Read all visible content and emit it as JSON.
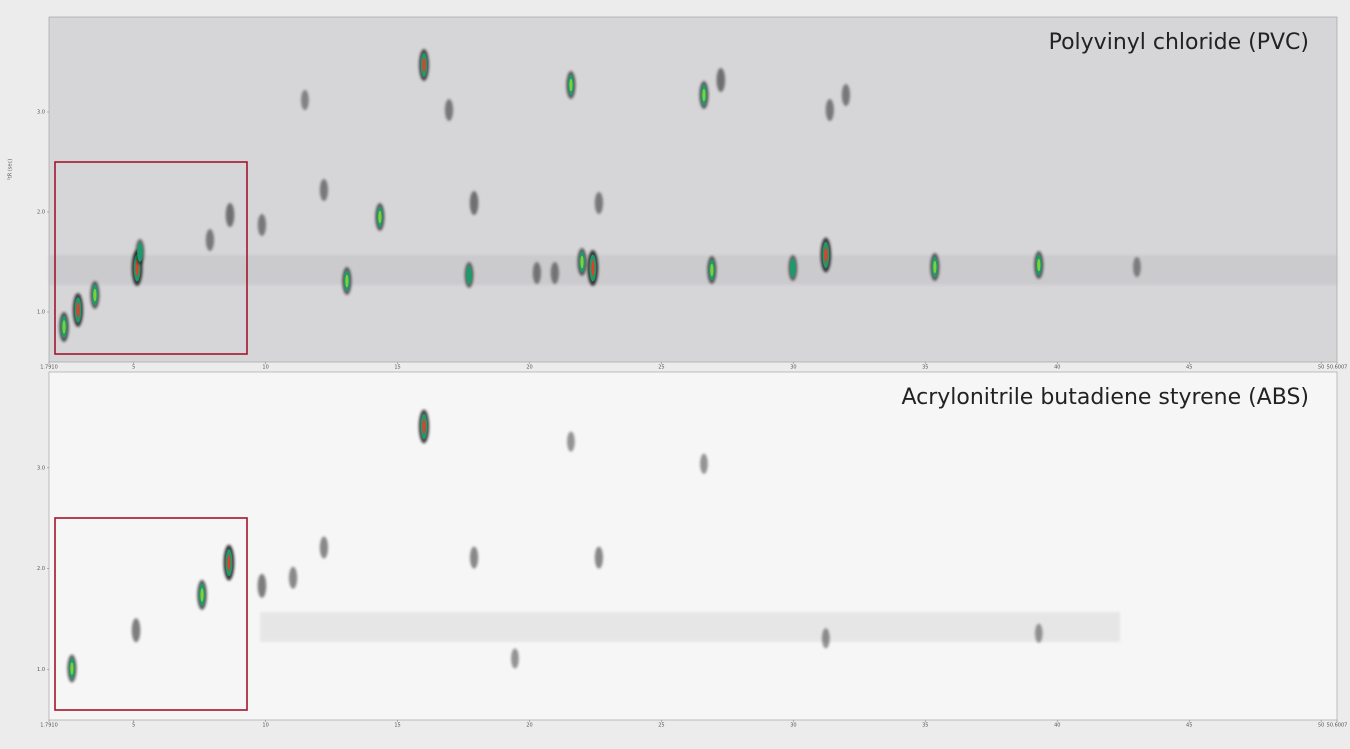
{
  "chart_data": [
    {
      "type": "scatter",
      "title": "Polyvinyl chloride (PVC)",
      "y_label": "²tR (sec)",
      "xlim": [
        1.791,
        50.6007
      ],
      "ylim": [
        0.5,
        3.95
      ],
      "xticks": [
        {
          "value": 1.791,
          "label": "1.7910"
        },
        5,
        10,
        15,
        20,
        25,
        30,
        35,
        40,
        45,
        50,
        {
          "value": 50.6007,
          "label": "50.6007"
        }
      ],
      "yticks": [
        {
          "value": 1,
          "label": "1.0"
        },
        {
          "value": 2,
          "label": "2.0"
        },
        {
          "value": 3,
          "label": "3.0"
        }
      ],
      "x": [
        2.36,
        2.89,
        3.53,
        5.13,
        5.24,
        7.89,
        8.65,
        9.86,
        11.49,
        12.21,
        13.08,
        14.33,
        16.0,
        16.95,
        17.71,
        17.9,
        20.28,
        20.96,
        21.57,
        21.99,
        22.4,
        22.63,
        26.61,
        26.91,
        27.25,
        29.98,
        31.23,
        31.38,
        31.99,
        35.36,
        39.3,
        43.02
      ],
      "y": [
        0.85,
        1.02,
        1.17,
        1.44,
        1.6,
        1.72,
        1.97,
        1.87,
        3.12,
        2.22,
        1.31,
        1.95,
        3.47,
        3.02,
        1.37,
        2.09,
        1.39,
        1.39,
        3.27,
        1.5,
        1.44,
        2.09,
        3.17,
        1.42,
        3.32,
        1.44,
        1.57,
        3.02,
        3.17,
        1.45,
        1.47,
        1.45
      ],
      "intensity": [
        0.7,
        0.9,
        0.6,
        1.0,
        0.5,
        0.3,
        0.4,
        0.3,
        0.2,
        0.3,
        0.6,
        0.6,
        0.8,
        0.3,
        0.5,
        0.4,
        0.3,
        0.3,
        0.6,
        0.6,
        1.0,
        0.3,
        0.6,
        0.6,
        0.4,
        0.5,
        0.95,
        0.3,
        0.3,
        0.6,
        0.6,
        0.2
      ]
    },
    {
      "type": "scatter",
      "title": "Acrylonitrile butadiene styrene (ABS)",
      "xlim": [
        1.791,
        50.6007
      ],
      "ylim": [
        0.5,
        3.95
      ],
      "xticks": [
        {
          "value": 1.791,
          "label": "1.7910"
        },
        5,
        10,
        15,
        20,
        25,
        30,
        35,
        40,
        45,
        50,
        {
          "value": 50.6007,
          "label": "50.6007"
        }
      ],
      "yticks": [
        {
          "value": 1,
          "label": "1.0"
        },
        {
          "value": 2,
          "label": "2.0"
        },
        {
          "value": 3,
          "label": "3.0"
        }
      ],
      "x": [
        2.66,
        5.09,
        7.59,
        8.61,
        9.86,
        11.04,
        12.21,
        16.0,
        17.9,
        19.45,
        21.57,
        22.63,
        26.61,
        31.23,
        39.3
      ],
      "y": [
        1.01,
        1.39,
        1.74,
        2.06,
        1.83,
        1.91,
        2.21,
        3.41,
        2.11,
        1.11,
        3.26,
        2.11,
        3.04,
        1.31,
        1.36
      ],
      "intensity": [
        0.6,
        0.4,
        0.7,
        1.0,
        0.4,
        0.3,
        0.3,
        0.9,
        0.3,
        0.2,
        0.2,
        0.3,
        0.2,
        0.2,
        0.15
      ]
    }
  ]
}
